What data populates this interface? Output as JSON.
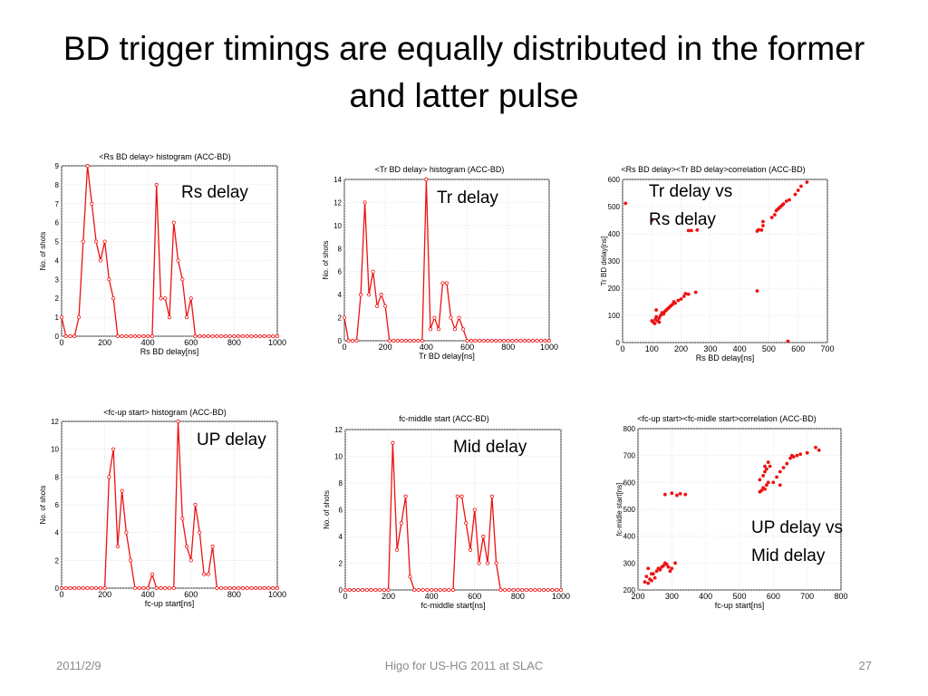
{
  "slide": {
    "title": "BD trigger timings are equally distributed in the former and latter pulse",
    "footer_left": "2011/2/9",
    "footer_center": "Higo for US-HG 2011 at SLAC",
    "footer_right": "27"
  },
  "annotations": {
    "rs": "Rs delay",
    "tr": "Tr delay",
    "trrs_line1": "Tr delay vs",
    "trrs_line2": "Rs delay",
    "up": "UP delay",
    "mid": "Mid delay",
    "upmid_line1": "UP delay vs",
    "upmid_line2": "Mid delay"
  },
  "style": {
    "series_color": "#ee1111",
    "grid_color": "#c8c8c8"
  },
  "chart_data": [
    {
      "id": "rs",
      "type": "line",
      "title": "<Rs BD delay> histogram (ACC-BD)",
      "xlabel": "Rs BD delay[ns]",
      "ylabel": "No. of shots",
      "xlim": [
        0,
        1000
      ],
      "ylim": [
        0,
        9
      ],
      "xticks": [
        0,
        200,
        400,
        600,
        800,
        1000
      ],
      "yticks": [
        0,
        1,
        2,
        3,
        4,
        5,
        6,
        7,
        8,
        9
      ],
      "x_start": 0,
      "x_step": 20,
      "values": [
        1,
        0,
        0,
        0,
        1,
        5,
        9,
        7,
        5,
        4,
        5,
        3,
        2,
        0,
        0,
        0,
        0,
        0,
        0,
        0,
        0,
        0,
        8,
        2,
        2,
        1,
        6,
        4,
        3,
        1,
        2,
        0,
        0,
        0,
        0,
        0,
        0,
        0,
        0,
        0,
        0,
        0,
        0,
        0,
        0,
        0,
        0,
        0,
        0,
        0,
        0
      ]
    },
    {
      "id": "tr",
      "type": "line",
      "title": "<Tr BD delay> histogram (ACC-BD)",
      "xlabel": "Tr BD delay[ns]",
      "ylabel": "No. of shots",
      "xlim": [
        0,
        1000
      ],
      "ylim": [
        0,
        14
      ],
      "xticks": [
        0,
        200,
        400,
        600,
        800,
        1000
      ],
      "yticks": [
        0,
        2,
        4,
        6,
        8,
        10,
        12,
        14
      ],
      "x_start": 0,
      "x_step": 20,
      "values": [
        2,
        0,
        0,
        0,
        4,
        12,
        4,
        6,
        3,
        4,
        3,
        0,
        0,
        0,
        0,
        0,
        0,
        0,
        0,
        0,
        14,
        1,
        2,
        1,
        5,
        5,
        2,
        1,
        2,
        1,
        0,
        0,
        0,
        0,
        0,
        0,
        0,
        0,
        0,
        0,
        0,
        0,
        0,
        0,
        0,
        0,
        0,
        0,
        0,
        0,
        0
      ]
    },
    {
      "id": "trrs",
      "type": "scatter",
      "title": "<Rs BD delay><Tr BD delay>correlation (ACC-BD)",
      "xlabel": "Rs BD delay[ns]",
      "ylabel": "Tr BD delay[ns]",
      "xlim": [
        0,
        700
      ],
      "ylim": [
        0,
        600
      ],
      "xticks": [
        0,
        100,
        200,
        300,
        400,
        500,
        600,
        700
      ],
      "yticks": [
        0,
        100,
        200,
        300,
        400,
        500,
        600
      ],
      "points": [
        [
          10,
          512
        ],
        [
          100,
          450
        ],
        [
          225,
          412
        ],
        [
          235,
          412
        ],
        [
          255,
          414
        ],
        [
          460,
          410
        ],
        [
          465,
          415
        ],
        [
          475,
          414
        ],
        [
          480,
          430
        ],
        [
          480,
          445
        ],
        [
          510,
          460
        ],
        [
          520,
          470
        ],
        [
          525,
          485
        ],
        [
          530,
          490
        ],
        [
          535,
          495
        ],
        [
          540,
          500
        ],
        [
          545,
          505
        ],
        [
          550,
          510
        ],
        [
          560,
          520
        ],
        [
          570,
          525
        ],
        [
          590,
          545
        ],
        [
          600,
          560
        ],
        [
          610,
          575
        ],
        [
          630,
          590
        ],
        [
          100,
          80
        ],
        [
          105,
          75
        ],
        [
          110,
          70
        ],
        [
          112,
          85
        ],
        [
          115,
          95
        ],
        [
          120,
          80
        ],
        [
          125,
          90
        ],
        [
          130,
          100
        ],
        [
          135,
          110
        ],
        [
          140,
          105
        ],
        [
          145,
          115
        ],
        [
          150,
          120
        ],
        [
          155,
          125
        ],
        [
          160,
          130
        ],
        [
          165,
          135
        ],
        [
          170,
          140
        ],
        [
          175,
          150
        ],
        [
          180,
          145
        ],
        [
          190,
          155
        ],
        [
          200,
          160
        ],
        [
          210,
          170
        ],
        [
          215,
          180
        ],
        [
          225,
          178
        ],
        [
          250,
          185
        ],
        [
          115,
          120
        ],
        [
          125,
          75
        ],
        [
          460,
          190
        ],
        [
          565,
          5
        ]
      ]
    },
    {
      "id": "up",
      "type": "line",
      "title": "<fc-up start> histogram (ACC-BD)",
      "xlabel": "fc-up start[ns]",
      "ylabel": "No. of shots",
      "xlim": [
        0,
        1000
      ],
      "ylim": [
        0,
        12
      ],
      "xticks": [
        0,
        200,
        400,
        600,
        800,
        1000
      ],
      "yticks": [
        0,
        2,
        4,
        6,
        8,
        10,
        12
      ],
      "x_start": 0,
      "x_step": 20,
      "values": [
        0,
        0,
        0,
        0,
        0,
        0,
        0,
        0,
        0,
        0,
        0,
        8,
        10,
        3,
        7,
        4,
        2,
        0,
        0,
        0,
        0,
        1,
        0,
        0,
        0,
        0,
        0,
        12,
        5,
        3,
        2,
        6,
        4,
        1,
        1,
        3,
        0,
        0,
        0,
        0,
        0,
        0,
        0,
        0,
        0,
        0,
        0,
        0,
        0,
        0,
        0
      ]
    },
    {
      "id": "mid",
      "type": "line",
      "title": "fc-middle start (ACC-BD)",
      "xlabel": "fc-middle start[ns]",
      "ylabel": "No. of shots",
      "xlim": [
        0,
        1000
      ],
      "ylim": [
        0,
        12
      ],
      "xticks": [
        0,
        200,
        400,
        600,
        800,
        1000
      ],
      "yticks": [
        0,
        2,
        4,
        6,
        8,
        10,
        12
      ],
      "x_start": 0,
      "x_step": 20,
      "values": [
        0,
        0,
        0,
        0,
        0,
        0,
        0,
        0,
        0,
        0,
        0,
        11,
        3,
        5,
        7,
        1,
        0,
        0,
        0,
        0,
        0,
        0,
        0,
        0,
        0,
        0,
        7,
        7,
        5,
        3,
        6,
        2,
        4,
        2,
        7,
        2,
        0,
        0,
        0,
        0,
        0,
        0,
        0,
        0,
        0,
        0,
        0,
        0,
        0,
        0,
        0
      ]
    },
    {
      "id": "upmid",
      "type": "scatter",
      "title": "<fc-up start><fc-midle start>correlation (ACC-BD)",
      "xlabel": "fc-up start[ns]",
      "ylabel": "fc-midle start[ns]",
      "xlim": [
        200,
        800
      ],
      "ylim": [
        200,
        800
      ],
      "xticks": [
        200,
        300,
        400,
        500,
        600,
        700,
        800
      ],
      "yticks": [
        200,
        300,
        400,
        500,
        600,
        700,
        800
      ],
      "points": [
        [
          220,
          230
        ],
        [
          225,
          250
        ],
        [
          230,
          225
        ],
        [
          235,
          240
        ],
        [
          240,
          235
        ],
        [
          245,
          260
        ],
        [
          250,
          245
        ],
        [
          255,
          270
        ],
        [
          260,
          280
        ],
        [
          265,
          275
        ],
        [
          270,
          285
        ],
        [
          275,
          290
        ],
        [
          280,
          300
        ],
        [
          285,
          295
        ],
        [
          290,
          285
        ],
        [
          295,
          270
        ],
        [
          300,
          280
        ],
        [
          310,
          300
        ],
        [
          230,
          280
        ],
        [
          240,
          260
        ],
        [
          280,
          555
        ],
        [
          300,
          560
        ],
        [
          315,
          552
        ],
        [
          325,
          558
        ],
        [
          340,
          555
        ],
        [
          560,
          565
        ],
        [
          565,
          570
        ],
        [
          570,
          580
        ],
        [
          575,
          575
        ],
        [
          580,
          590
        ],
        [
          585,
          600
        ],
        [
          560,
          610
        ],
        [
          570,
          625
        ],
        [
          575,
          640
        ],
        [
          580,
          650
        ],
        [
          590,
          660
        ],
        [
          600,
          600
        ],
        [
          610,
          620
        ],
        [
          620,
          640
        ],
        [
          630,
          655
        ],
        [
          640,
          670
        ],
        [
          650,
          690
        ],
        [
          655,
          700
        ],
        [
          660,
          695
        ],
        [
          670,
          700
        ],
        [
          680,
          705
        ],
        [
          700,
          710
        ],
        [
          725,
          730
        ],
        [
          735,
          720
        ],
        [
          575,
          660
        ],
        [
          585,
          675
        ],
        [
          620,
          590
        ]
      ]
    }
  ]
}
